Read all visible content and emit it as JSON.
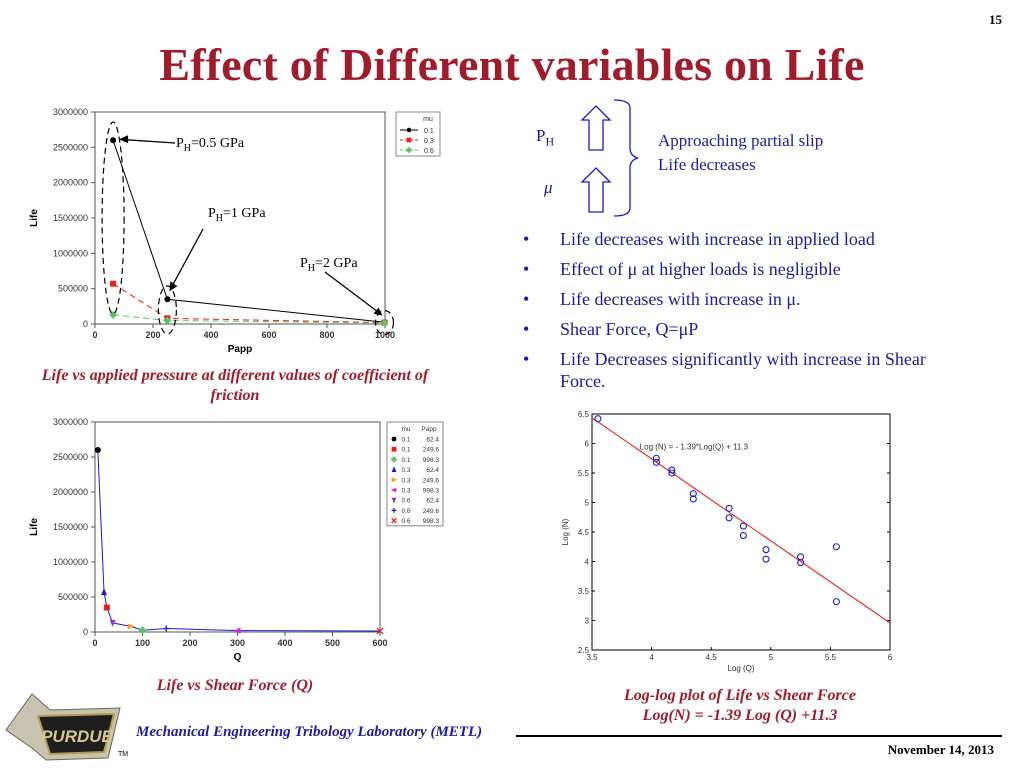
{
  "slide": {
    "number": "15",
    "title": "Effect of Different variables on Life",
    "footer_lab": "Mechanical Engineering Tribology Laboratory (METL)",
    "footer_date": "November 14, 2013",
    "logo_text": "PURDUE",
    "logo_tm": "TM"
  },
  "side_note": {
    "ph_sym": "P",
    "ph_sub": "H",
    "mu_sym": "μ",
    "line1": "Approaching partial slip",
    "line2": "Life decreases"
  },
  "bullets": [
    "Life decreases with increase in applied load",
    "Effect of μ at higher loads is negligible",
    "Life decreases with increase in μ.",
    "Shear Force, Q=μP",
    "Life Decreases significantly with increase in Shear Force."
  ],
  "captions": {
    "chart1": "Life vs applied pressure at different values of coefficient of friction",
    "chart2": "Life vs Shear Force (Q)",
    "chart3_line1": "Log-log plot of Life vs Shear Force",
    "chart3_line2": "Log(N) = -1.39 Log (Q) +11.3"
  },
  "annotations": {
    "ph05": "P",
    "ph05_sub": "H",
    "ph05_rest": "=0.5 GPa",
    "ph1": "P",
    "ph1_sub": "H",
    "ph1_rest": "=1 GPa",
    "ph2": "P",
    "ph2_sub": "H",
    "ph2_rest": "=2 GPa"
  },
  "chart_data": [
    {
      "type": "line",
      "xlabel": "Papp",
      "ylabel": "Life",
      "xlim": [
        0,
        1000
      ],
      "ylim": [
        0,
        3000000
      ],
      "xticks": [
        0,
        200,
        400,
        600,
        800,
        1000
      ],
      "yticks": [
        0,
        500000,
        1000000,
        1500000,
        2000000,
        2500000,
        3000000
      ],
      "legend_title": "mu",
      "legend_position": "top-right",
      "series": [
        {
          "name": "0.1",
          "color": "#000000",
          "marker": "circle",
          "dash": "",
          "x": [
            62.4,
            249.6,
            998.3
          ],
          "y": [
            2600000,
            350000,
            25000
          ]
        },
        {
          "name": "0.3",
          "color": "#e8221a",
          "marker": "square",
          "dash": "6,4",
          "x": [
            62.4,
            249.6,
            998.3
          ],
          "y": [
            570000,
            80000,
            20000
          ]
        },
        {
          "name": "0.6",
          "color": "#5cc466",
          "marker": "diamond",
          "dash": "6,4",
          "x": [
            62.4,
            249.6,
            998.3
          ],
          "y": [
            130000,
            50000,
            15000
          ]
        }
      ]
    },
    {
      "type": "scatter",
      "xlabel": "Q",
      "ylabel": "Life",
      "xlim": [
        0,
        600
      ],
      "ylim": [
        0,
        3000000
      ],
      "xticks": [
        0,
        100,
        200,
        300,
        400,
        500,
        600
      ],
      "yticks": [
        0,
        500000,
        1000000,
        1500000,
        2000000,
        2500000,
        3000000
      ],
      "legend_headers": [
        "mu",
        "Papp"
      ],
      "legend_position": "top-right",
      "line_color": "#1a1ad6",
      "points": [
        {
          "mu": "0.1",
          "papp": "62.4",
          "q": 6,
          "life": 2600000,
          "marker": "circle",
          "color": "#000000"
        },
        {
          "mu": "0.1",
          "papp": "249.6",
          "q": 25,
          "life": 350000,
          "marker": "square",
          "color": "#e8221a"
        },
        {
          "mu": "0.1",
          "papp": "998.3",
          "q": 100,
          "life": 25000,
          "marker": "diamond",
          "color": "#5cc466"
        },
        {
          "mu": "0.3",
          "papp": "62.4",
          "q": 19,
          "life": 570000,
          "marker": "triangle-up",
          "color": "#1a1ad6"
        },
        {
          "mu": "0.3",
          "papp": "249.6",
          "q": 75,
          "life": 80000,
          "marker": "triangle-right",
          "color": "#f7a11a"
        },
        {
          "mu": "0.3",
          "papp": "998.3",
          "q": 300,
          "life": 20000,
          "marker": "triangle-left",
          "color": "#e324e0"
        },
        {
          "mu": "0.6",
          "papp": "62.4",
          "q": 37,
          "life": 130000,
          "marker": "triangle-down",
          "color": "#8b3cc9"
        },
        {
          "mu": "0.6",
          "papp": "249.6",
          "q": 150,
          "life": 50000,
          "marker": "plus",
          "color": "#1a1ad6"
        },
        {
          "mu": "0.6",
          "papp": "998.3",
          "q": 600,
          "life": 15000,
          "marker": "cross",
          "color": "#e8221a"
        }
      ]
    },
    {
      "type": "scatter",
      "xlabel": "Log (Q)",
      "ylabel": "Log (N)",
      "xlim": [
        3.5,
        6
      ],
      "ylim": [
        2.5,
        6.5
      ],
      "xticks": [
        3.5,
        4,
        4.5,
        5,
        5.5,
        6
      ],
      "yticks": [
        2.5,
        3,
        3.5,
        4,
        4.5,
        5,
        5.5,
        6,
        6.5
      ],
      "fit_label": "Log (N) = - 1.39*Log(Q) + 11.3",
      "fit": {
        "slope": -1.39,
        "intercept": 11.3,
        "color": "#e8221a"
      },
      "point_color": "#1a1ad6",
      "points": [
        [
          3.55,
          6.42
        ],
        [
          4.04,
          5.75
        ],
        [
          4.04,
          5.68
        ],
        [
          4.17,
          5.55
        ],
        [
          4.17,
          5.5
        ],
        [
          4.35,
          5.15
        ],
        [
          4.35,
          5.06
        ],
        [
          4.65,
          4.9
        ],
        [
          4.65,
          4.74
        ],
        [
          4.77,
          4.6
        ],
        [
          4.77,
          4.44
        ],
        [
          4.96,
          4.2
        ],
        [
          4.96,
          4.04
        ],
        [
          5.25,
          4.08
        ],
        [
          5.25,
          3.98
        ],
        [
          5.55,
          4.25
        ],
        [
          5.55,
          3.32
        ]
      ]
    }
  ]
}
